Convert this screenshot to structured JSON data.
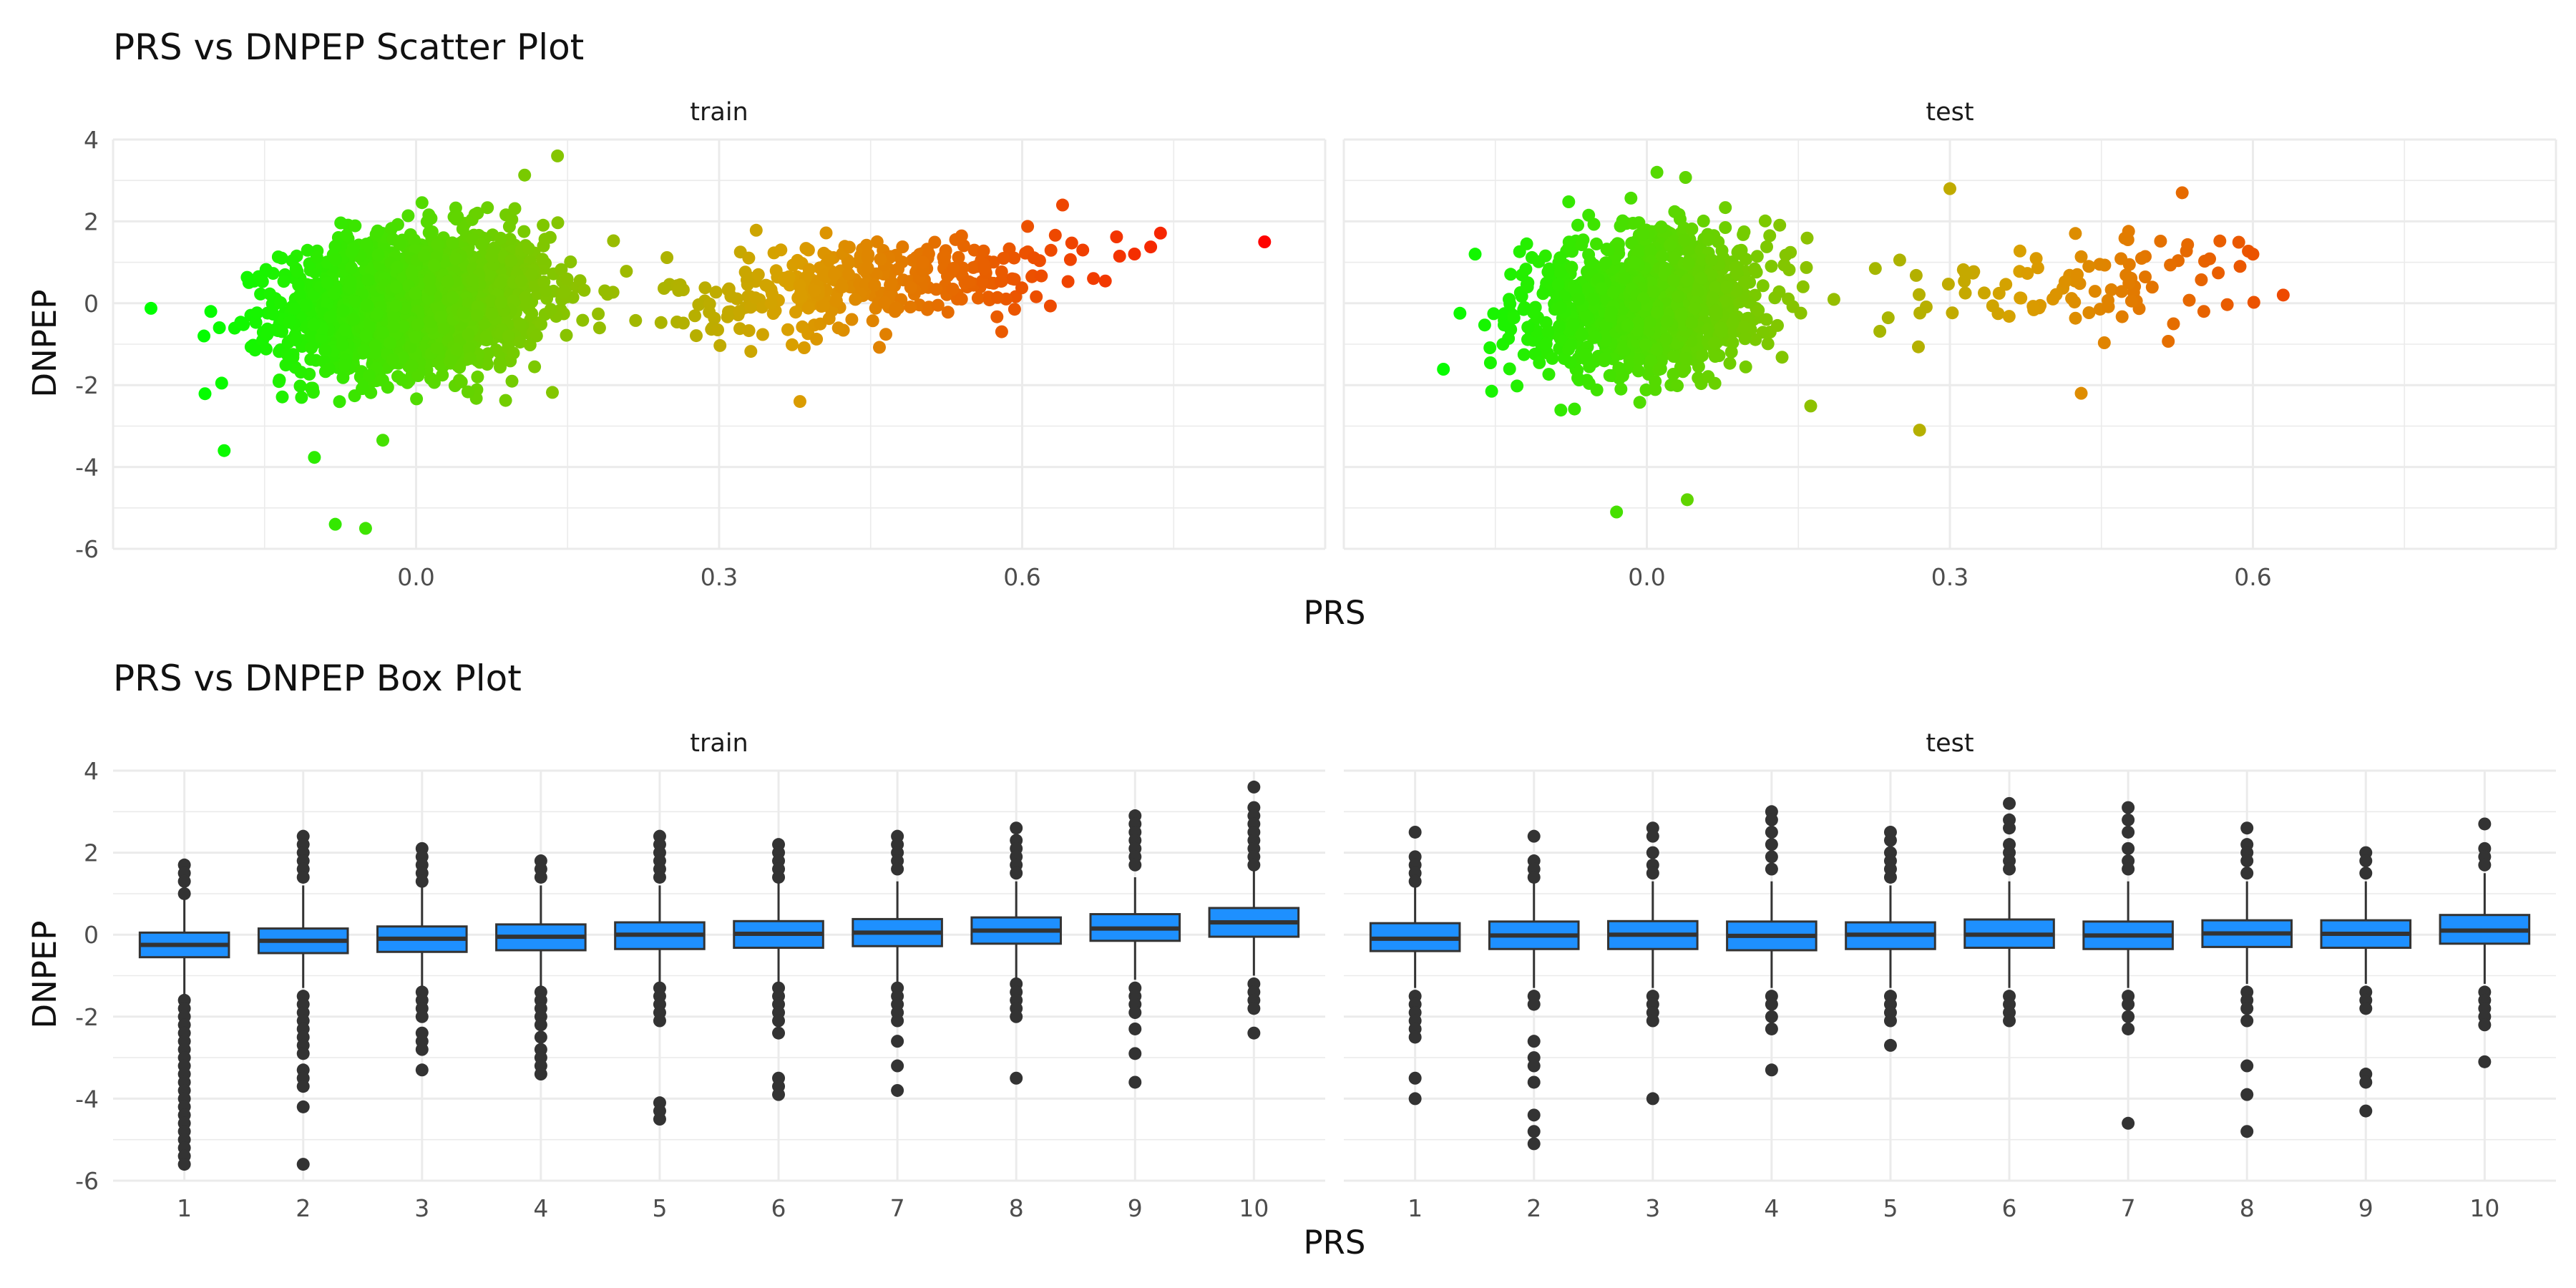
{
  "chart_data": [
    {
      "type": "scatter",
      "title": "PRS vs DNPEP Scatter Plot",
      "xlabel": "PRS",
      "ylabel": "DNPEP",
      "facets": [
        "train",
        "test"
      ],
      "xlim": [
        -0.3,
        0.9
      ],
      "ylim": [
        -6,
        4
      ],
      "x_ticks": [
        "0.0",
        "0.3",
        "0.6"
      ],
      "y_ticks": [
        "-6",
        "-4",
        "-2",
        "0",
        "2",
        "4"
      ],
      "grid": true,
      "color_gradient": {
        "low": "#00ff00",
        "mid": "#d9a000",
        "high": "#ff0000"
      },
      "panels": [
        {
          "facet": "train",
          "clusters": [
            {
              "x_center": 0.0,
              "x_sd": 0.065,
              "y_center": 0.0,
              "y_sd": 0.85,
              "count": 1800
            },
            {
              "x_center": 0.45,
              "x_sd": 0.1,
              "y_center": 0.5,
              "y_sd": 0.55,
              "count": 340
            }
          ],
          "points": [
            {
              "x": 0.84,
              "y": 1.5
            },
            {
              "x": -0.19,
              "y": -3.6
            },
            {
              "x": -0.08,
              "y": -5.4
            },
            {
              "x": -0.05,
              "y": -5.5
            },
            {
              "x": 0.14,
              "y": 3.6
            },
            {
              "x": 0.38,
              "y": -2.4
            },
            {
              "x": -0.21,
              "y": -0.8
            },
            {
              "x": 0.64,
              "y": 2.4
            },
            {
              "x": 0.66,
              "y": 1.3
            }
          ]
        },
        {
          "facet": "test",
          "clusters": [
            {
              "x_center": 0.0,
              "x_sd": 0.06,
              "y_center": 0.0,
              "y_sd": 0.85,
              "count": 1100
            },
            {
              "x_center": 0.42,
              "x_sd": 0.08,
              "y_center": 0.5,
              "y_sd": 0.5,
              "count": 95
            }
          ],
          "points": [
            {
              "x": 0.63,
              "y": 0.2
            },
            {
              "x": 0.6,
              "y": 1.2
            },
            {
              "x": 0.53,
              "y": 2.7
            },
            {
              "x": 0.3,
              "y": 2.8
            },
            {
              "x": 0.27,
              "y": -3.1
            },
            {
              "x": 0.43,
              "y": -2.2
            },
            {
              "x": -0.17,
              "y": 1.2
            },
            {
              "x": -0.03,
              "y": -5.1
            },
            {
              "x": 0.04,
              "y": -4.8
            },
            {
              "x": 0.01,
              "y": 3.2
            }
          ]
        }
      ]
    },
    {
      "type": "box",
      "title": "PRS vs DNPEP Box Plot",
      "xlabel": "PRS",
      "ylabel": "DNPEP",
      "facets": [
        "train",
        "test"
      ],
      "categories": [
        "1",
        "2",
        "3",
        "4",
        "5",
        "6",
        "7",
        "8",
        "9",
        "10"
      ],
      "ylim": [
        -6,
        4
      ],
      "y_ticks": [
        "-6",
        "-4",
        "-2",
        "0",
        "2",
        "4"
      ],
      "grid": true,
      "box_fill": "#1e90ff",
      "outlier_color": "#333333",
      "panels": [
        {
          "facet": "train",
          "boxes": [
            {
              "q1": -0.55,
              "median": -0.25,
              "q3": 0.05,
              "whisker_low": -1.5,
              "whisker_high": 1.0,
              "outliers": [
                1.7,
                1.5,
                1.3,
                1.0,
                -1.6,
                -1.8,
                -2.0,
                -2.2,
                -2.4,
                -2.6,
                -2.8,
                -3.0,
                -3.2,
                -3.4,
                -3.6,
                -3.8,
                -4.0,
                -4.2,
                -4.4,
                -4.6,
                -4.8,
                -5.0,
                -5.2,
                -5.4,
                -5.6
              ]
            },
            {
              "q1": -0.45,
              "median": -0.15,
              "q3": 0.15,
              "whisker_low": -1.3,
              "whisker_high": 1.2,
              "outliers": [
                2.4,
                2.2,
                2.0,
                1.8,
                1.6,
                1.4,
                -1.5,
                -1.7,
                -1.9,
                -2.1,
                -2.3,
                -2.5,
                -2.7,
                -2.9,
                -3.3,
                -3.5,
                -3.7,
                -4.2,
                -5.6
              ]
            },
            {
              "q1": -0.42,
              "median": -0.1,
              "q3": 0.2,
              "whisker_low": -1.3,
              "whisker_high": 1.2,
              "outliers": [
                2.1,
                1.9,
                1.7,
                1.5,
                1.3,
                -1.4,
                -1.6,
                -1.8,
                -2.0,
                -2.4,
                -2.6,
                -2.8,
                -3.3
              ]
            },
            {
              "q1": -0.38,
              "median": -0.05,
              "q3": 0.25,
              "whisker_low": -1.3,
              "whisker_high": 1.2,
              "outliers": [
                1.8,
                1.6,
                1.4,
                -1.4,
                -1.6,
                -1.8,
                -2.0,
                -2.2,
                -2.5,
                -2.8,
                -3.0,
                -3.2,
                -3.4
              ]
            },
            {
              "q1": -0.35,
              "median": 0.0,
              "q3": 0.3,
              "whisker_low": -1.2,
              "whisker_high": 1.2,
              "outliers": [
                2.4,
                2.2,
                2.0,
                1.8,
                1.6,
                1.4,
                -1.3,
                -1.5,
                -1.7,
                -1.9,
                -2.1,
                -4.1,
                -4.3,
                -4.5
              ]
            },
            {
              "q1": -0.32,
              "median": 0.02,
              "q3": 0.33,
              "whisker_low": -1.2,
              "whisker_high": 1.3,
              "outliers": [
                2.2,
                2.0,
                1.8,
                1.6,
                1.4,
                -1.3,
                -1.5,
                -1.7,
                -1.9,
                -2.1,
                -2.4,
                -3.5,
                -3.7,
                -3.9
              ]
            },
            {
              "q1": -0.28,
              "median": 0.05,
              "q3": 0.38,
              "whisker_low": -1.2,
              "whisker_high": 1.3,
              "outliers": [
                2.4,
                2.2,
                2.0,
                1.8,
                1.6,
                -1.3,
                -1.5,
                -1.7,
                -1.9,
                -2.1,
                -2.6,
                -3.2,
                -3.8
              ]
            },
            {
              "q1": -0.22,
              "median": 0.1,
              "q3": 0.42,
              "whisker_low": -1.1,
              "whisker_high": 1.3,
              "outliers": [
                2.6,
                2.3,
                2.1,
                1.9,
                1.7,
                1.5,
                -1.2,
                -1.4,
                -1.6,
                -1.8,
                -2.0,
                -3.5
              ]
            },
            {
              "q1": -0.15,
              "median": 0.15,
              "q3": 0.5,
              "whisker_low": -1.1,
              "whisker_high": 1.4,
              "outliers": [
                2.9,
                2.7,
                2.5,
                2.3,
                2.1,
                1.9,
                1.7,
                -1.3,
                -1.5,
                -1.7,
                -1.9,
                -2.3,
                -2.9,
                -3.6
              ]
            },
            {
              "q1": -0.05,
              "median": 0.3,
              "q3": 0.65,
              "whisker_low": -1.0,
              "whisker_high": 1.6,
              "outliers": [
                3.6,
                3.1,
                2.9,
                2.7,
                2.5,
                2.3,
                2.1,
                1.9,
                1.7,
                -1.2,
                -1.4,
                -1.6,
                -1.8,
                -2.4
              ]
            }
          ]
        },
        {
          "facet": "test",
          "boxes": [
            {
              "q1": -0.4,
              "median": -0.1,
              "q3": 0.28,
              "whisker_low": -1.3,
              "whisker_high": 1.2,
              "outliers": [
                2.5,
                1.9,
                1.7,
                1.5,
                1.3,
                -1.5,
                -1.7,
                -1.9,
                -2.1,
                -2.3,
                -2.5,
                -3.5,
                -4.0
              ]
            },
            {
              "q1": -0.35,
              "median": -0.02,
              "q3": 0.32,
              "whisker_low": -1.3,
              "whisker_high": 1.3,
              "outliers": [
                2.4,
                1.8,
                1.6,
                1.4,
                -1.5,
                -1.7,
                -2.6,
                -3.0,
                -3.2,
                -3.6,
                -4.4,
                -4.8,
                -5.1
              ]
            },
            {
              "q1": -0.35,
              "median": 0.0,
              "q3": 0.33,
              "whisker_low": -1.3,
              "whisker_high": 1.3,
              "outliers": [
                2.6,
                2.4,
                2.0,
                1.7,
                1.5,
                -1.5,
                -1.7,
                -1.9,
                -2.1,
                -4.0
              ]
            },
            {
              "q1": -0.38,
              "median": -0.03,
              "q3": 0.32,
              "whisker_low": -1.3,
              "whisker_high": 1.3,
              "outliers": [
                3.0,
                2.8,
                2.5,
                2.2,
                1.9,
                1.6,
                -1.5,
                -1.7,
                -2.0,
                -2.3,
                -3.3
              ]
            },
            {
              "q1": -0.35,
              "median": 0.0,
              "q3": 0.3,
              "whisker_low": -1.3,
              "whisker_high": 1.2,
              "outliers": [
                2.5,
                2.3,
                2.0,
                1.8,
                1.6,
                1.4,
                -1.5,
                -1.7,
                -1.9,
                -2.1,
                -2.7
              ]
            },
            {
              "q1": -0.32,
              "median": 0.0,
              "q3": 0.37,
              "whisker_low": -1.3,
              "whisker_high": 1.3,
              "outliers": [
                3.2,
                2.8,
                2.6,
                2.2,
                2.0,
                1.8,
                1.6,
                -1.5,
                -1.7,
                -1.9,
                -2.1
              ]
            },
            {
              "q1": -0.35,
              "median": -0.02,
              "q3": 0.32,
              "whisker_low": -1.3,
              "whisker_high": 1.3,
              "outliers": [
                3.1,
                2.8,
                2.5,
                2.1,
                1.8,
                1.6,
                -1.5,
                -1.7,
                -2.0,
                -2.3,
                -4.6
              ]
            },
            {
              "q1": -0.3,
              "median": 0.03,
              "q3": 0.35,
              "whisker_low": -1.2,
              "whisker_high": 1.3,
              "outliers": [
                2.6,
                2.2,
                2.0,
                1.8,
                1.5,
                -1.4,
                -1.6,
                -1.8,
                -2.1,
                -3.2,
                -3.9,
                -4.8
              ]
            },
            {
              "q1": -0.32,
              "median": 0.02,
              "q3": 0.35,
              "whisker_low": -1.2,
              "whisker_high": 1.3,
              "outliers": [
                2.0,
                1.8,
                1.5,
                -1.4,
                -1.6,
                -1.8,
                -3.4,
                -3.6,
                -4.3
              ]
            },
            {
              "q1": -0.22,
              "median": 0.1,
              "q3": 0.48,
              "whisker_low": -1.2,
              "whisker_high": 1.5,
              "outliers": [
                2.7,
                2.1,
                1.9,
                1.7,
                -1.4,
                -1.6,
                -1.8,
                -2.0,
                -2.2,
                -3.1
              ]
            }
          ]
        }
      ]
    }
  ]
}
